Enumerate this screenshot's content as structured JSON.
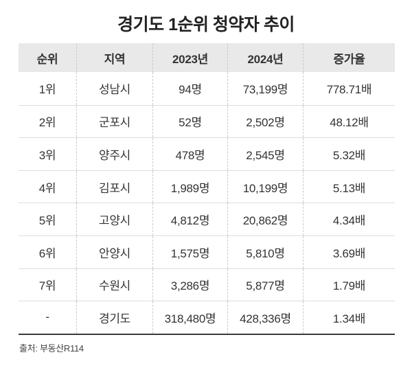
{
  "title": "경기도 1순위 청약자 추이",
  "source": "출처: 부동산R114",
  "colors": {
    "page_bg": "#ffffff",
    "title_color": "#222222",
    "text_color": "#333333",
    "header_bg": "#e9e9e9",
    "row_line": "#dcdcdc",
    "col_dash": "#c9c9c9",
    "bottom_line": "#3a3a3a",
    "source_color": "#444444"
  },
  "chart_data": {
    "type": "table",
    "title": "경기도 1순위 청약자 추이",
    "columns": [
      "순위",
      "지역",
      "2023년",
      "2024년",
      "증가율"
    ],
    "rows": [
      [
        "1위",
        "성남시",
        "94명",
        "73,199명",
        "778.71배"
      ],
      [
        "2위",
        "군포시",
        "52명",
        "2,502명",
        "48.12배"
      ],
      [
        "3위",
        "양주시",
        "478명",
        "2,545명",
        "5.32배"
      ],
      [
        "4위",
        "김포시",
        "1,989명",
        "10,199명",
        "5.13배"
      ],
      [
        "5위",
        "고양시",
        "4,812명",
        "20,862명",
        "4.34배"
      ],
      [
        "6위",
        "안양시",
        "1,575명",
        "5,810명",
        "3.69배"
      ],
      [
        "7위",
        "수원시",
        "3,286명",
        "5,877명",
        "1.79배"
      ],
      [
        "-",
        "경기도",
        "318,480명",
        "428,336명",
        "1.34배"
      ]
    ],
    "source": "출처: 부동산R114",
    "layout": {
      "header_background": true,
      "dashed_column_separators": true,
      "bottom_rule": "dark"
    }
  }
}
